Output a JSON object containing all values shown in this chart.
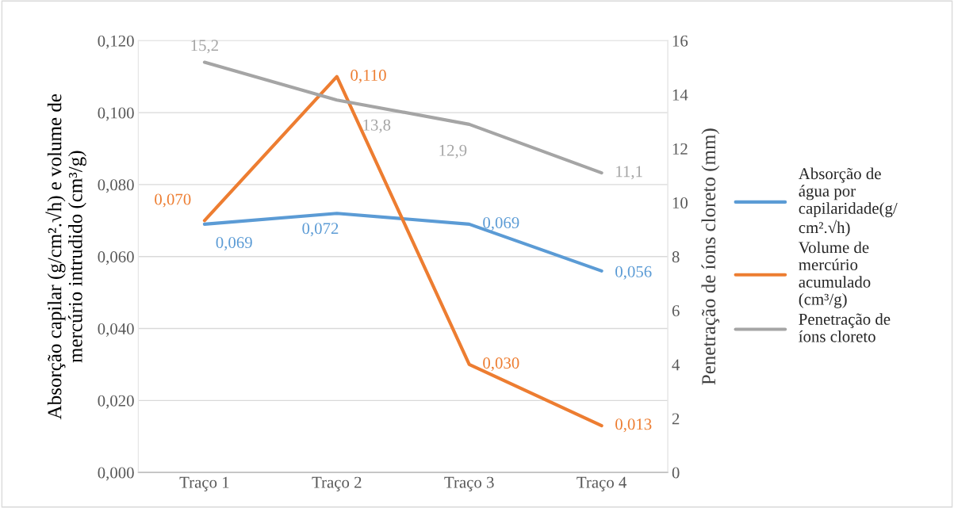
{
  "chart_data": {
    "type": "line",
    "categories": [
      "Traço 1",
      "Traço 2",
      "Traço 3",
      "Traço 4"
    ],
    "ylabel": "Absorção capilar (g/cm².√h) e volume de mercúrio intrudido (cm³/g)",
    "y2label": "Penetração de íons cloreto (mm)",
    "ylim": [
      0,
      0.12
    ],
    "yticks": [
      {
        "value": 0,
        "label": "0,000"
      },
      {
        "value": 0.02,
        "label": "0,020"
      },
      {
        "value": 0.04,
        "label": "0,040"
      },
      {
        "value": 0.06,
        "label": "0,060"
      },
      {
        "value": 0.08,
        "label": "0,080"
      },
      {
        "value": 0.1,
        "label": "0,100"
      },
      {
        "value": 0.12,
        "label": "0,120"
      }
    ],
    "y2lim": [
      0,
      16
    ],
    "y2ticks": [
      0,
      2,
      4,
      6,
      8,
      10,
      12,
      14,
      16
    ],
    "grid": "y",
    "legend": "right",
    "marker": "none",
    "line_style": "solid",
    "series": [
      {
        "name": "Absorção de água por capilaridade(g/cm².√h)",
        "color": "#5b9bd5",
        "values": [
          0.069,
          0.072,
          0.069,
          0.056
        ],
        "value_labels": [
          "0,069",
          "0,072",
          "0,069",
          "0,056"
        ]
      },
      {
        "name": "Volume de mercúrio acumulado (cm³/g)",
        "color": "#ed7d31",
        "values": [
          0.07,
          0.11,
          0.03,
          0.013
        ],
        "value_labels": [
          "0,070",
          "0,110",
          "0,030",
          "0,013"
        ]
      },
      {
        "name": "Penetração de íons cloreto",
        "color": "#a5a5a5",
        "axis": "y2",
        "values": [
          15.2,
          13.8,
          12.9,
          11.1
        ],
        "value_labels": [
          "15,2",
          "13,8",
          "12,9",
          "11,1"
        ]
      }
    ]
  }
}
